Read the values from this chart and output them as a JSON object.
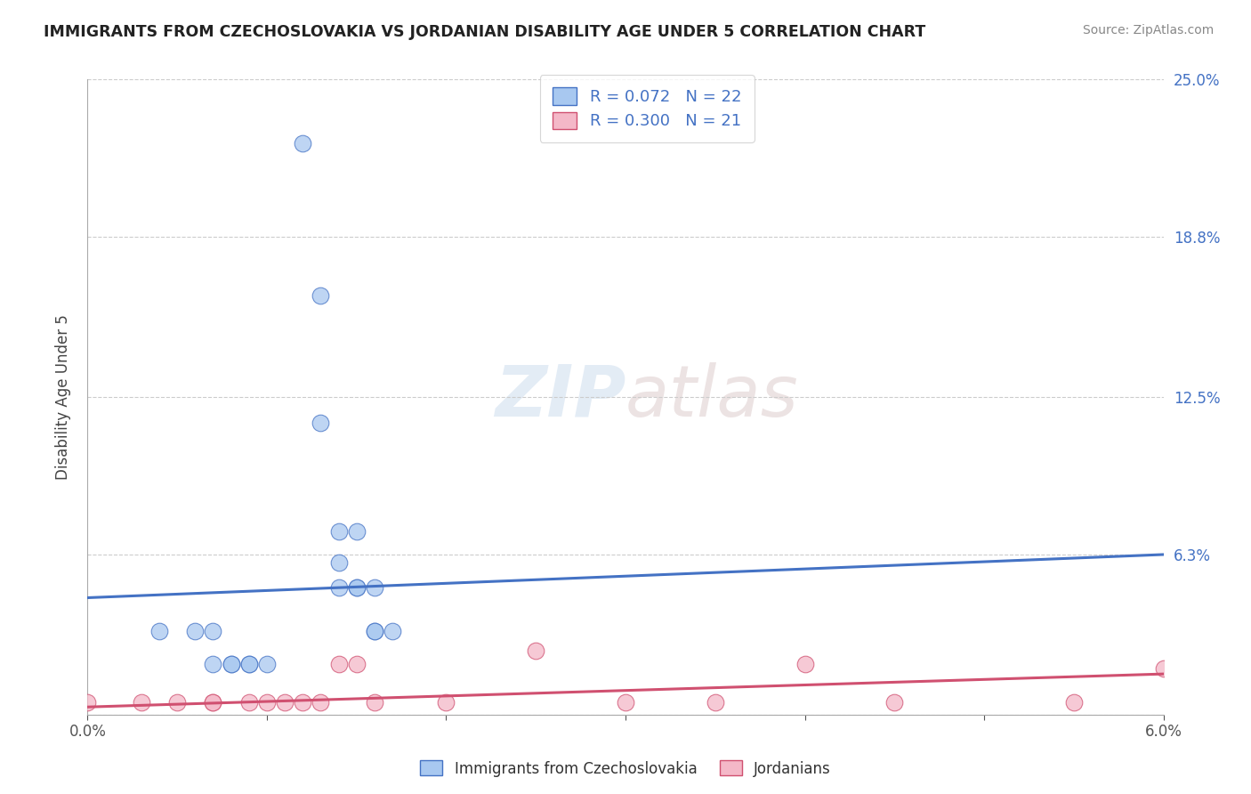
{
  "title": "IMMIGRANTS FROM CZECHOSLOVAKIA VS JORDANIAN DISABILITY AGE UNDER 5 CORRELATION CHART",
  "source": "Source: ZipAtlas.com",
  "ylabel": "Disability Age Under 5",
  "legend_label_1": "Immigrants from Czechoslovakia",
  "legend_label_2": "Jordanians",
  "R1": 0.072,
  "N1": 22,
  "R2": 0.3,
  "N2": 21,
  "color1": "#A8C8F0",
  "color2": "#F4B8C8",
  "line_color1": "#4472C4",
  "line_color2": "#D05070",
  "watermark": "ZIPatlas",
  "xlim": [
    0.0,
    0.06
  ],
  "ylim": [
    0.0,
    0.25
  ],
  "ytick_labels_right": [
    "6.3%",
    "12.5%",
    "18.8%",
    "25.0%"
  ],
  "ytick_values": [
    0.0,
    0.063,
    0.125,
    0.188,
    0.25
  ],
  "ytick_values_labeled": [
    0.063,
    0.125,
    0.188,
    0.25
  ],
  "xtick_values": [
    0.0,
    0.01,
    0.02,
    0.03,
    0.04,
    0.05,
    0.06
  ],
  "scatter1_x": [
    0.012,
    0.013,
    0.013,
    0.014,
    0.014,
    0.015,
    0.015,
    0.015,
    0.016,
    0.016,
    0.016,
    0.017,
    0.004,
    0.006,
    0.007,
    0.007,
    0.008,
    0.008,
    0.009,
    0.009,
    0.01,
    0.014
  ],
  "scatter1_y": [
    0.225,
    0.165,
    0.115,
    0.072,
    0.05,
    0.072,
    0.05,
    0.05,
    0.05,
    0.033,
    0.033,
    0.033,
    0.033,
    0.033,
    0.033,
    0.02,
    0.02,
    0.02,
    0.02,
    0.02,
    0.02,
    0.06
  ],
  "scatter2_x": [
    0.0,
    0.003,
    0.005,
    0.007,
    0.007,
    0.009,
    0.01,
    0.011,
    0.012,
    0.013,
    0.014,
    0.015,
    0.016,
    0.02,
    0.025,
    0.03,
    0.035,
    0.04,
    0.045,
    0.055,
    0.06
  ],
  "scatter2_y": [
    0.005,
    0.005,
    0.005,
    0.005,
    0.005,
    0.005,
    0.005,
    0.005,
    0.005,
    0.005,
    0.02,
    0.02,
    0.005,
    0.005,
    0.025,
    0.005,
    0.005,
    0.02,
    0.005,
    0.005,
    0.018
  ],
  "trendline1_x": [
    0.0,
    0.06
  ],
  "trendline1_y": [
    0.046,
    0.063
  ],
  "trendline2_x": [
    0.0,
    0.06
  ],
  "trendline2_y": [
    0.003,
    0.016
  ]
}
